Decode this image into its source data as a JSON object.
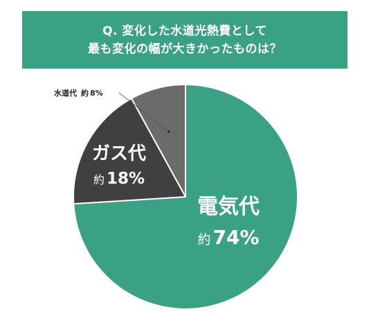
{
  "chart_data": {
    "type": "pie",
    "title": [
      "Q. 変化した水道光熱費として",
      "最も変化の幅が大きかったものは？"
    ],
    "slices": [
      {
        "name": "電気代",
        "prefix": "約",
        "value": 74,
        "display": "74%",
        "color": "#3aa184"
      },
      {
        "name": "ガス代",
        "prefix": "約",
        "value": 18,
        "display": "18%",
        "color": "#404040"
      },
      {
        "name": "水道代",
        "prefix": "約",
        "value": 8,
        "display": "8%",
        "color": "#6b6b6b"
      }
    ],
    "legend": "none"
  }
}
